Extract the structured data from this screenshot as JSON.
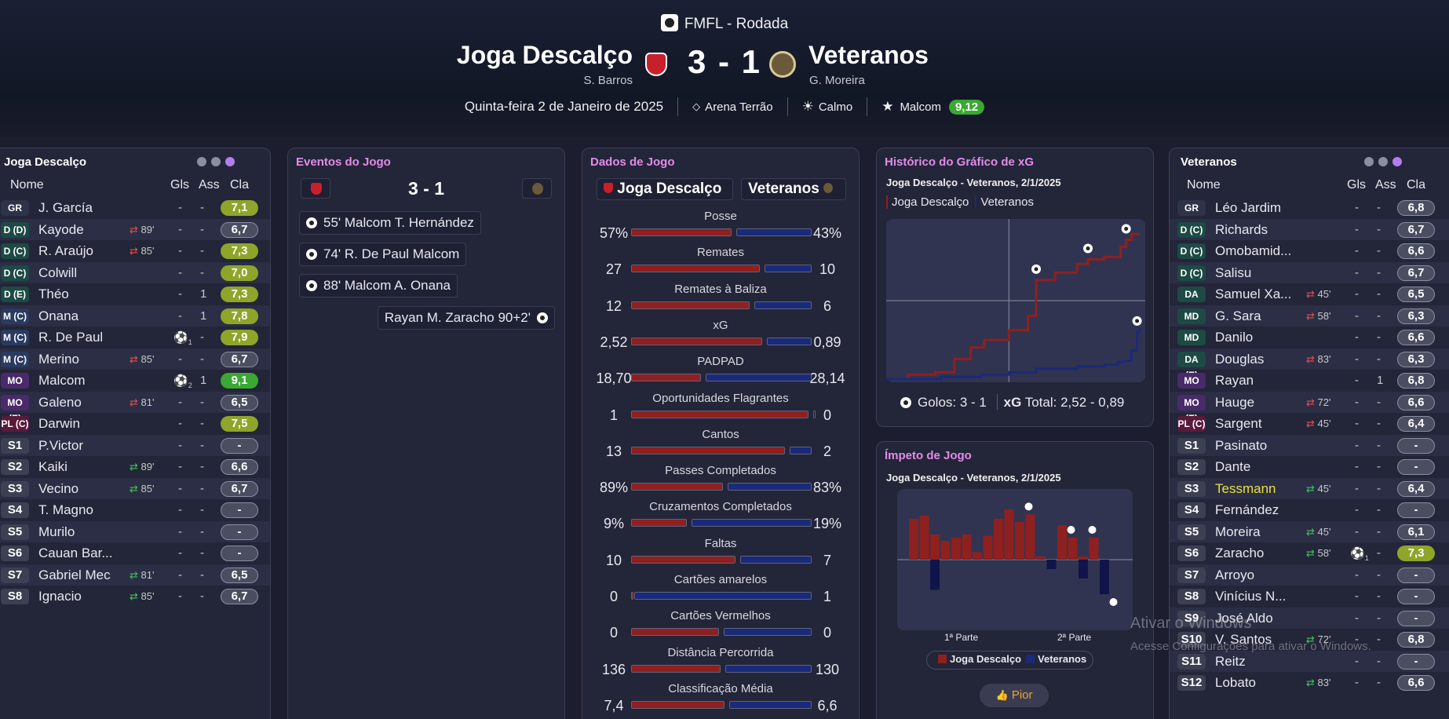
{
  "header": {
    "competition": "FMFL - Rodada",
    "home_team": "Joga Descalço",
    "home_manager": "S. Barros",
    "score": "3 - 1",
    "away_team": "Veteranos",
    "away_manager": "G. Moreira",
    "date": "Quinta-feira 2 de Janeiro de 2025",
    "stadium": "Arena Terrão",
    "weather": "Calmo",
    "potm_name": "Malcom",
    "potm_rating": "9,12"
  },
  "home_lineup": {
    "title": "Joga Descalço",
    "cols": {
      "name": "Nome",
      "gls": "Gls",
      "ass": "Ass",
      "cla": "Cla"
    },
    "players": [
      {
        "pos": "GR",
        "name": "J. García",
        "sub": "",
        "gls": "-",
        "ass": "-",
        "rating": "7,1",
        "rt": "y"
      },
      {
        "pos": "D (D)",
        "name": "Kayode",
        "sub": "89'",
        "gls": "-",
        "ass": "-",
        "rating": "6,7",
        "rt": "o"
      },
      {
        "pos": "D (C)",
        "name": "R. Araújo",
        "sub": "85'",
        "gls": "-",
        "ass": "-",
        "rating": "7,3",
        "rt": "y"
      },
      {
        "pos": "D (C)",
        "name": "Colwill",
        "sub": "",
        "gls": "-",
        "ass": "-",
        "rating": "7,0",
        "rt": "y"
      },
      {
        "pos": "D (E)",
        "name": "Théo",
        "sub": "",
        "gls": "-",
        "ass": "1",
        "rating": "7,3",
        "rt": "y"
      },
      {
        "pos": "M (C)",
        "name": "Onana",
        "sub": "",
        "gls": "-",
        "ass": "1",
        "rating": "7,8",
        "rt": "y"
      },
      {
        "pos": "M (C)",
        "name": "R. De Paul",
        "sub": "",
        "gls": "1",
        "ass": "-",
        "rating": "7,9",
        "rt": "y"
      },
      {
        "pos": "M (C)",
        "name": "Merino",
        "sub": "85'",
        "gls": "-",
        "ass": "-",
        "rating": "6,7",
        "rt": "o"
      },
      {
        "pos": "MO (D)",
        "name": "Malcom",
        "sub": "",
        "gls": "2",
        "ass": "1",
        "rating": "9,1",
        "rt": "gg"
      },
      {
        "pos": "MO (E)",
        "name": "Galeno",
        "sub": "81'",
        "gls": "-",
        "ass": "-",
        "rating": "6,5",
        "rt": "o"
      },
      {
        "pos": "PL (C)",
        "name": "Darwin",
        "sub": "",
        "gls": "-",
        "ass": "-",
        "rating": "7,5",
        "rt": "y"
      },
      {
        "pos": "S1",
        "name": "P.Victor",
        "sub": "",
        "gls": "-",
        "ass": "-",
        "rating": "-",
        "rt": "n"
      },
      {
        "pos": "S2",
        "name": "Kaiki",
        "sub": "89'",
        "gls": "-",
        "ass": "-",
        "rating": "6,6",
        "rt": "o"
      },
      {
        "pos": "S3",
        "name": "Vecino",
        "sub": "85'",
        "gls": "-",
        "ass": "-",
        "rating": "6,7",
        "rt": "o"
      },
      {
        "pos": "S4",
        "name": "T. Magno",
        "sub": "",
        "gls": "-",
        "ass": "-",
        "rating": "-",
        "rt": "n"
      },
      {
        "pos": "S5",
        "name": "Murilo",
        "sub": "",
        "gls": "-",
        "ass": "-",
        "rating": "-",
        "rt": "n"
      },
      {
        "pos": "S6",
        "name": "Cauan Bar...",
        "sub": "",
        "gls": "-",
        "ass": "-",
        "rating": "-",
        "rt": "n"
      },
      {
        "pos": "S7",
        "name": "Gabriel Mec",
        "sub": "81'",
        "gls": "-",
        "ass": "-",
        "rating": "6,5",
        "rt": "o"
      },
      {
        "pos": "S8",
        "name": "Ignacio",
        "sub": "85'",
        "gls": "-",
        "ass": "-",
        "rating": "6,7",
        "rt": "o"
      }
    ]
  },
  "events": {
    "title": "Eventos do Jogo",
    "score": "3 - 1",
    "items": [
      {
        "text": "55' Malcom T. Hernández",
        "side": "home"
      },
      {
        "text": "74' R. De Paul Malcom",
        "side": "home"
      },
      {
        "text": "88' Malcom A. Onana",
        "side": "home"
      },
      {
        "text": "Rayan M. Zaracho 90+2'",
        "side": "away"
      }
    ]
  },
  "stats": {
    "title": "Dados de Jogo",
    "home": "Joga Descalço",
    "away": "Veteranos",
    "rows": [
      {
        "label": "Posse",
        "home": "57%",
        "away": "43%",
        "hp": 0.57,
        "ap": 0.43
      },
      {
        "label": "Remates",
        "home": "27",
        "away": "10",
        "hp": 0.73,
        "ap": 0.27
      },
      {
        "label": "Remates à Baliza",
        "home": "12",
        "away": "6",
        "hp": 0.67,
        "ap": 0.33
      },
      {
        "label": "xG",
        "home": "2,52",
        "away": "0,89",
        "hp": 0.74,
        "ap": 0.26
      },
      {
        "label": "PADPAD",
        "home": "18,70",
        "away": "28,14",
        "hp": 0.4,
        "ap": 0.6
      },
      {
        "label": "Oportunidades Flagrantes",
        "home": "1",
        "away": "0",
        "hp": 1.0,
        "ap": 0.0
      },
      {
        "label": "Cantos",
        "home": "13",
        "away": "2",
        "hp": 0.87,
        "ap": 0.13
      },
      {
        "label": "Passes Completados",
        "home": "89%",
        "away": "83%",
        "hp": 0.52,
        "ap": 0.48
      },
      {
        "label": "Cruzamentos Completados",
        "home": "9%",
        "away": "19%",
        "hp": 0.32,
        "ap": 0.68
      },
      {
        "label": "Faltas",
        "home": "10",
        "away": "7",
        "hp": 0.59,
        "ap": 0.41
      },
      {
        "label": "Cartões amarelos",
        "home": "0",
        "away": "1",
        "hp": 0.0,
        "ap": 1.0
      },
      {
        "label": "Cartões Vermelhos",
        "home": "0",
        "away": "0",
        "hp": 0.5,
        "ap": 0.5
      },
      {
        "label": "Distância Percorrida",
        "home": "136",
        "away": "130",
        "hp": 0.51,
        "ap": 0.49
      },
      {
        "label": "Classificação Média",
        "home": "7,4",
        "away": "6,6",
        "hp": 0.53,
        "ap": 0.47
      }
    ]
  },
  "xg_chart": {
    "title": "Histórico do Gráfico de xG",
    "subtitle": "Joga Descalço - Veteranos, 2/1/2025",
    "legend_home": "Joga Descalço",
    "legend_away": "Veteranos",
    "footer_goals": "Golos: 3 - 1",
    "footer_xg_label": "xG",
    "footer_xg": "Total: 2,52 - 0,89"
  },
  "chart_data": [
    {
      "type": "line",
      "title": "Histórico do Gráfico de xG",
      "xlabel": "",
      "ylabel": "",
      "series": [
        {
          "name": "Joga Descalço",
          "x": [
            0,
            8,
            18,
            25,
            31,
            36,
            45,
            52,
            55,
            62,
            70,
            74,
            80,
            86,
            88,
            90,
            93
          ],
          "y": [
            0.0,
            0.08,
            0.12,
            0.35,
            0.55,
            0.68,
            0.85,
            1.1,
            1.72,
            1.85,
            2.0,
            2.08,
            2.12,
            2.3,
            2.42,
            2.52,
            2.52
          ]
        },
        {
          "name": "Veteranos",
          "x": [
            0,
            20,
            35,
            45,
            55,
            70,
            80,
            85,
            88,
            90,
            92,
            93
          ],
          "y": [
            0.0,
            0.04,
            0.08,
            0.12,
            0.18,
            0.22,
            0.25,
            0.3,
            0.32,
            0.5,
            0.82,
            0.89
          ]
        }
      ]
    },
    {
      "type": "bar",
      "title": "Ímpeto de Jogo",
      "categories": [
        "1",
        "2",
        "3",
        "4",
        "5",
        "6",
        "7",
        "8",
        "9",
        "10",
        "11",
        "12",
        "13",
        "14",
        "15",
        "16",
        "17",
        "18",
        "19",
        "20"
      ],
      "series": [
        {
          "name": "Joga Descalço",
          "values": [
            0.65,
            0.7,
            0.4,
            0.3,
            0.35,
            0.4,
            0.12,
            0.38,
            0.65,
            0.8,
            0.6,
            0.72,
            0.05,
            0.0,
            0.55,
            0.35,
            0.05,
            0.35,
            0.0,
            0.0
          ]
        },
        {
          "name": "Veteranos",
          "values": [
            0.0,
            0.0,
            0.48,
            0.0,
            0.0,
            0.0,
            0.0,
            0.0,
            0.0,
            0.0,
            0.0,
            0.0,
            0.0,
            0.15,
            0.0,
            0.0,
            0.3,
            0.0,
            0.55,
            0.0
          ]
        }
      ]
    }
  ],
  "momentum": {
    "title": "Ímpeto de Jogo",
    "subtitle": "Joga Descalço - Veteranos, 2/1/2025",
    "first_half": "1ª Parte",
    "second_half": "2ª Parte",
    "legend_home": "Joga Descalço",
    "legend_away": "Veteranos",
    "button": "Pior"
  },
  "away_lineup": {
    "title": "Veteranos",
    "cols": {
      "name": "Nome",
      "gls": "Gls",
      "ass": "Ass",
      "cla": "Cla"
    },
    "players": [
      {
        "pos": "GR",
        "name": "Léo Jardim",
        "sub": "",
        "gls": "-",
        "ass": "-",
        "rating": "6,8",
        "rt": "o"
      },
      {
        "pos": "D (C)",
        "name": "Richards",
        "sub": "",
        "gls": "-",
        "ass": "-",
        "rating": "6,7",
        "rt": "o"
      },
      {
        "pos": "D (C)",
        "name": "Omobamid...",
        "sub": "",
        "gls": "-",
        "ass": "-",
        "rating": "6,6",
        "rt": "o"
      },
      {
        "pos": "D (C)",
        "name": "Salisu",
        "sub": "",
        "gls": "-",
        "ass": "-",
        "rating": "6,7",
        "rt": "o"
      },
      {
        "pos": "DA (D)",
        "name": "Samuel Xa...",
        "sub": "45'",
        "gls": "-",
        "ass": "-",
        "rating": "6,5",
        "rt": "o"
      },
      {
        "pos": "MD",
        "name": "G. Sara",
        "sub": "58'",
        "gls": "-",
        "ass": "-",
        "rating": "6,3",
        "rt": "o"
      },
      {
        "pos": "MD",
        "name": "Danilo",
        "sub": "",
        "gls": "-",
        "ass": "-",
        "rating": "6,6",
        "rt": "o"
      },
      {
        "pos": "DA (E)",
        "name": "Douglas",
        "sub": "83'",
        "gls": "-",
        "ass": "-",
        "rating": "6,3",
        "rt": "o"
      },
      {
        "pos": "MO (D)",
        "name": "Rayan",
        "sub": "",
        "gls": "-",
        "ass": "1",
        "rating": "6,8",
        "rt": "o"
      },
      {
        "pos": "MO (E)",
        "name": "Hauge",
        "sub": "72'",
        "gls": "-",
        "ass": "-",
        "rating": "6,6",
        "rt": "o"
      },
      {
        "pos": "PL (C)",
        "name": "Sargent",
        "sub": "45'",
        "gls": "-",
        "ass": "-",
        "rating": "6,4",
        "rt": "o"
      },
      {
        "pos": "S1",
        "name": "Pasinato",
        "sub": "",
        "gls": "-",
        "ass": "-",
        "rating": "-",
        "rt": "n"
      },
      {
        "pos": "S2",
        "name": "Dante",
        "sub": "",
        "gls": "-",
        "ass": "-",
        "rating": "-",
        "rt": "n"
      },
      {
        "pos": "S3",
        "name": "Tessmann",
        "sub": "45'",
        "gls": "-",
        "ass": "-",
        "rating": "6,4",
        "rt": "o"
      },
      {
        "pos": "S4",
        "name": "Fernández",
        "sub": "",
        "gls": "-",
        "ass": "-",
        "rating": "-",
        "rt": "n"
      },
      {
        "pos": "S5",
        "name": "Moreira",
        "sub": "45'",
        "gls": "-",
        "ass": "-",
        "rating": "6,1",
        "rt": "o"
      },
      {
        "pos": "S6",
        "name": "Zaracho",
        "sub": "58'",
        "gls": "1",
        "ass": "-",
        "rating": "7,3",
        "rt": "y"
      },
      {
        "pos": "S7",
        "name": "Arroyo",
        "sub": "",
        "gls": "-",
        "ass": "-",
        "rating": "-",
        "rt": "n"
      },
      {
        "pos": "S8",
        "name": "Vinícius N...",
        "sub": "",
        "gls": "-",
        "ass": "-",
        "rating": "-",
        "rt": "n"
      },
      {
        "pos": "S9",
        "name": "José Aldo",
        "sub": "",
        "gls": "-",
        "ass": "-",
        "rating": "-",
        "rt": "n"
      },
      {
        "pos": "S10",
        "name": "V. Santos",
        "sub": "72'",
        "gls": "-",
        "ass": "-",
        "rating": "6,8",
        "rt": "o"
      },
      {
        "pos": "S11",
        "name": "Reitz",
        "sub": "",
        "gls": "-",
        "ass": "-",
        "rating": "-",
        "rt": "n"
      },
      {
        "pos": "S12",
        "name": "Lobato",
        "sub": "83'",
        "gls": "-",
        "ass": "-",
        "rating": "6,6",
        "rt": "o"
      }
    ]
  },
  "watermark": {
    "line1": "Ativar o Windows",
    "line2": "Acesse Configurações para ativar o Windows."
  },
  "colors": {
    "home": "#8e2020",
    "away": "#1a2a7a",
    "accent": "#e28ce8",
    "rating_high": "#3aa832",
    "rating_good": "#8ea52a"
  }
}
